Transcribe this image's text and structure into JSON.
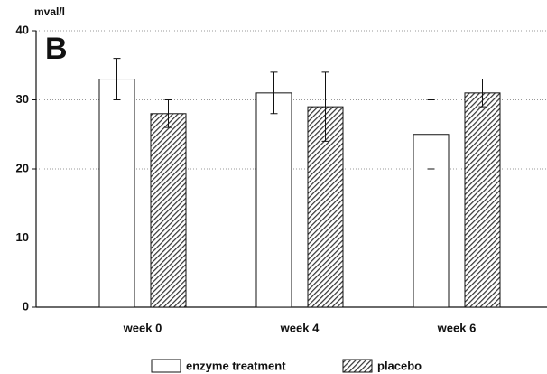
{
  "chart_data": {
    "type": "bar",
    "panel_label": "B",
    "y_label": "mval/l",
    "categories": [
      "week 0",
      "week 4",
      "week 6"
    ],
    "series": [
      {
        "name": "enzyme treatment",
        "color": "#ffffff",
        "hatch": false,
        "values": [
          33,
          31,
          25
        ],
        "errors": [
          3,
          3,
          5
        ]
      },
      {
        "name": "placebo",
        "color": "#333333",
        "hatch": true,
        "values": [
          28,
          29,
          31
        ],
        "errors": [
          2,
          5,
          2
        ]
      }
    ],
    "ylim": [
      0,
      40
    ],
    "yticks": [
      0,
      10,
      20,
      30,
      40
    ],
    "grid": true,
    "legend": "bottom"
  }
}
